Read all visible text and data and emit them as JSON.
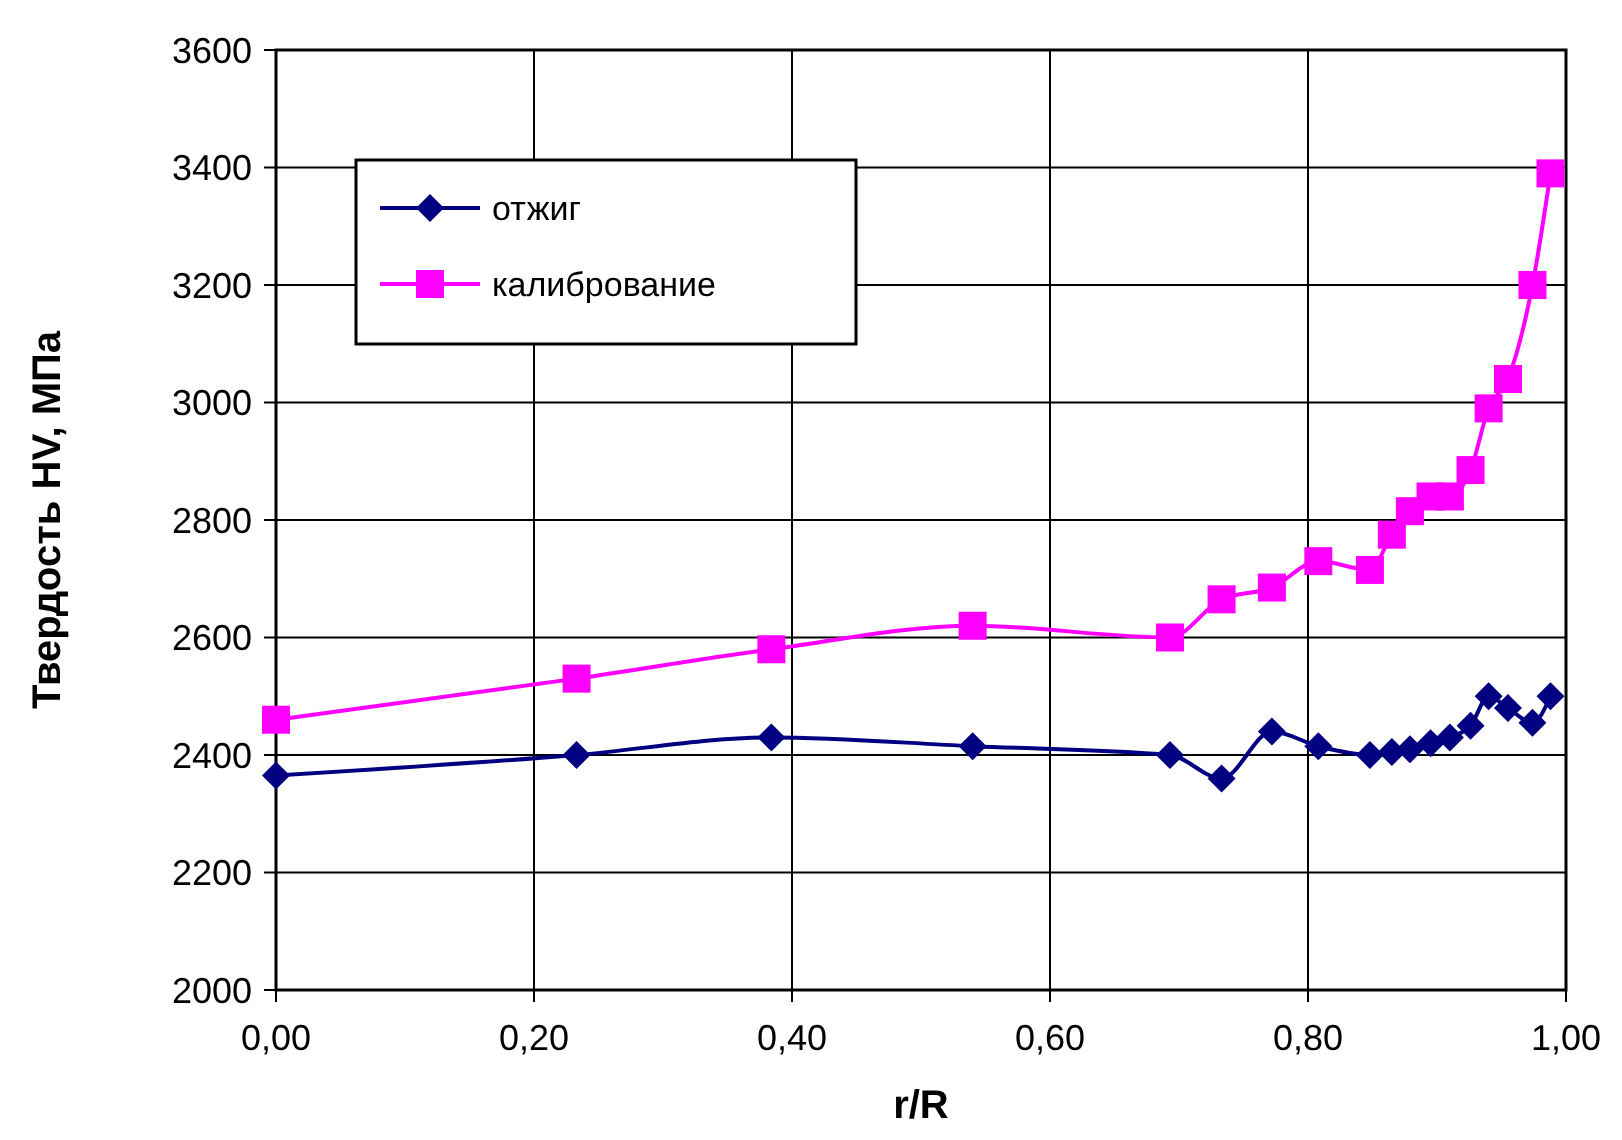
{
  "chart_data": {
    "type": "line",
    "xlabel": "r/R",
    "ylabel": "Твердость HV, МПа",
    "x": [
      0,
      0.233,
      0.384,
      0.54,
      0.693,
      0.733,
      0.772,
      0.808,
      0.848,
      0.865,
      0.879,
      0.895,
      0.91,
      0.926,
      0.94,
      0.955,
      0.974,
      0.988
    ],
    "series": [
      {
        "name": "отжиг",
        "color": "#000080",
        "marker": "diamond",
        "values": [
          2365,
          2400,
          2430,
          2415,
          2400,
          2360,
          2440,
          2415,
          2400,
          2405,
          2410,
          2420,
          2430,
          2450,
          2500,
          2480,
          2455,
          2500
        ]
      },
      {
        "name": "калибрование",
        "color": "#ff00ff",
        "marker": "square",
        "values": [
          2460,
          2530,
          2580,
          2620,
          2600,
          2665,
          2685,
          2730,
          2715,
          2775,
          2815,
          2840,
          2840,
          2885,
          2990,
          3040,
          3200,
          3390
        ]
      }
    ],
    "xlim": [
      0,
      1
    ],
    "xticks": [
      {
        "value": 0,
        "label": "0,00"
      },
      {
        "value": 0.2,
        "label": "0,20"
      },
      {
        "value": 0.4,
        "label": "0,40"
      },
      {
        "value": 0.6,
        "label": "0,60"
      },
      {
        "value": 0.8,
        "label": "0,80"
      },
      {
        "value": 1,
        "label": "1,00"
      }
    ],
    "ylim": [
      2000,
      3600
    ],
    "yticks": [
      2000,
      2200,
      2400,
      2600,
      2800,
      3000,
      3200,
      3400,
      3600
    ],
    "grid": true,
    "legend": "top left"
  }
}
